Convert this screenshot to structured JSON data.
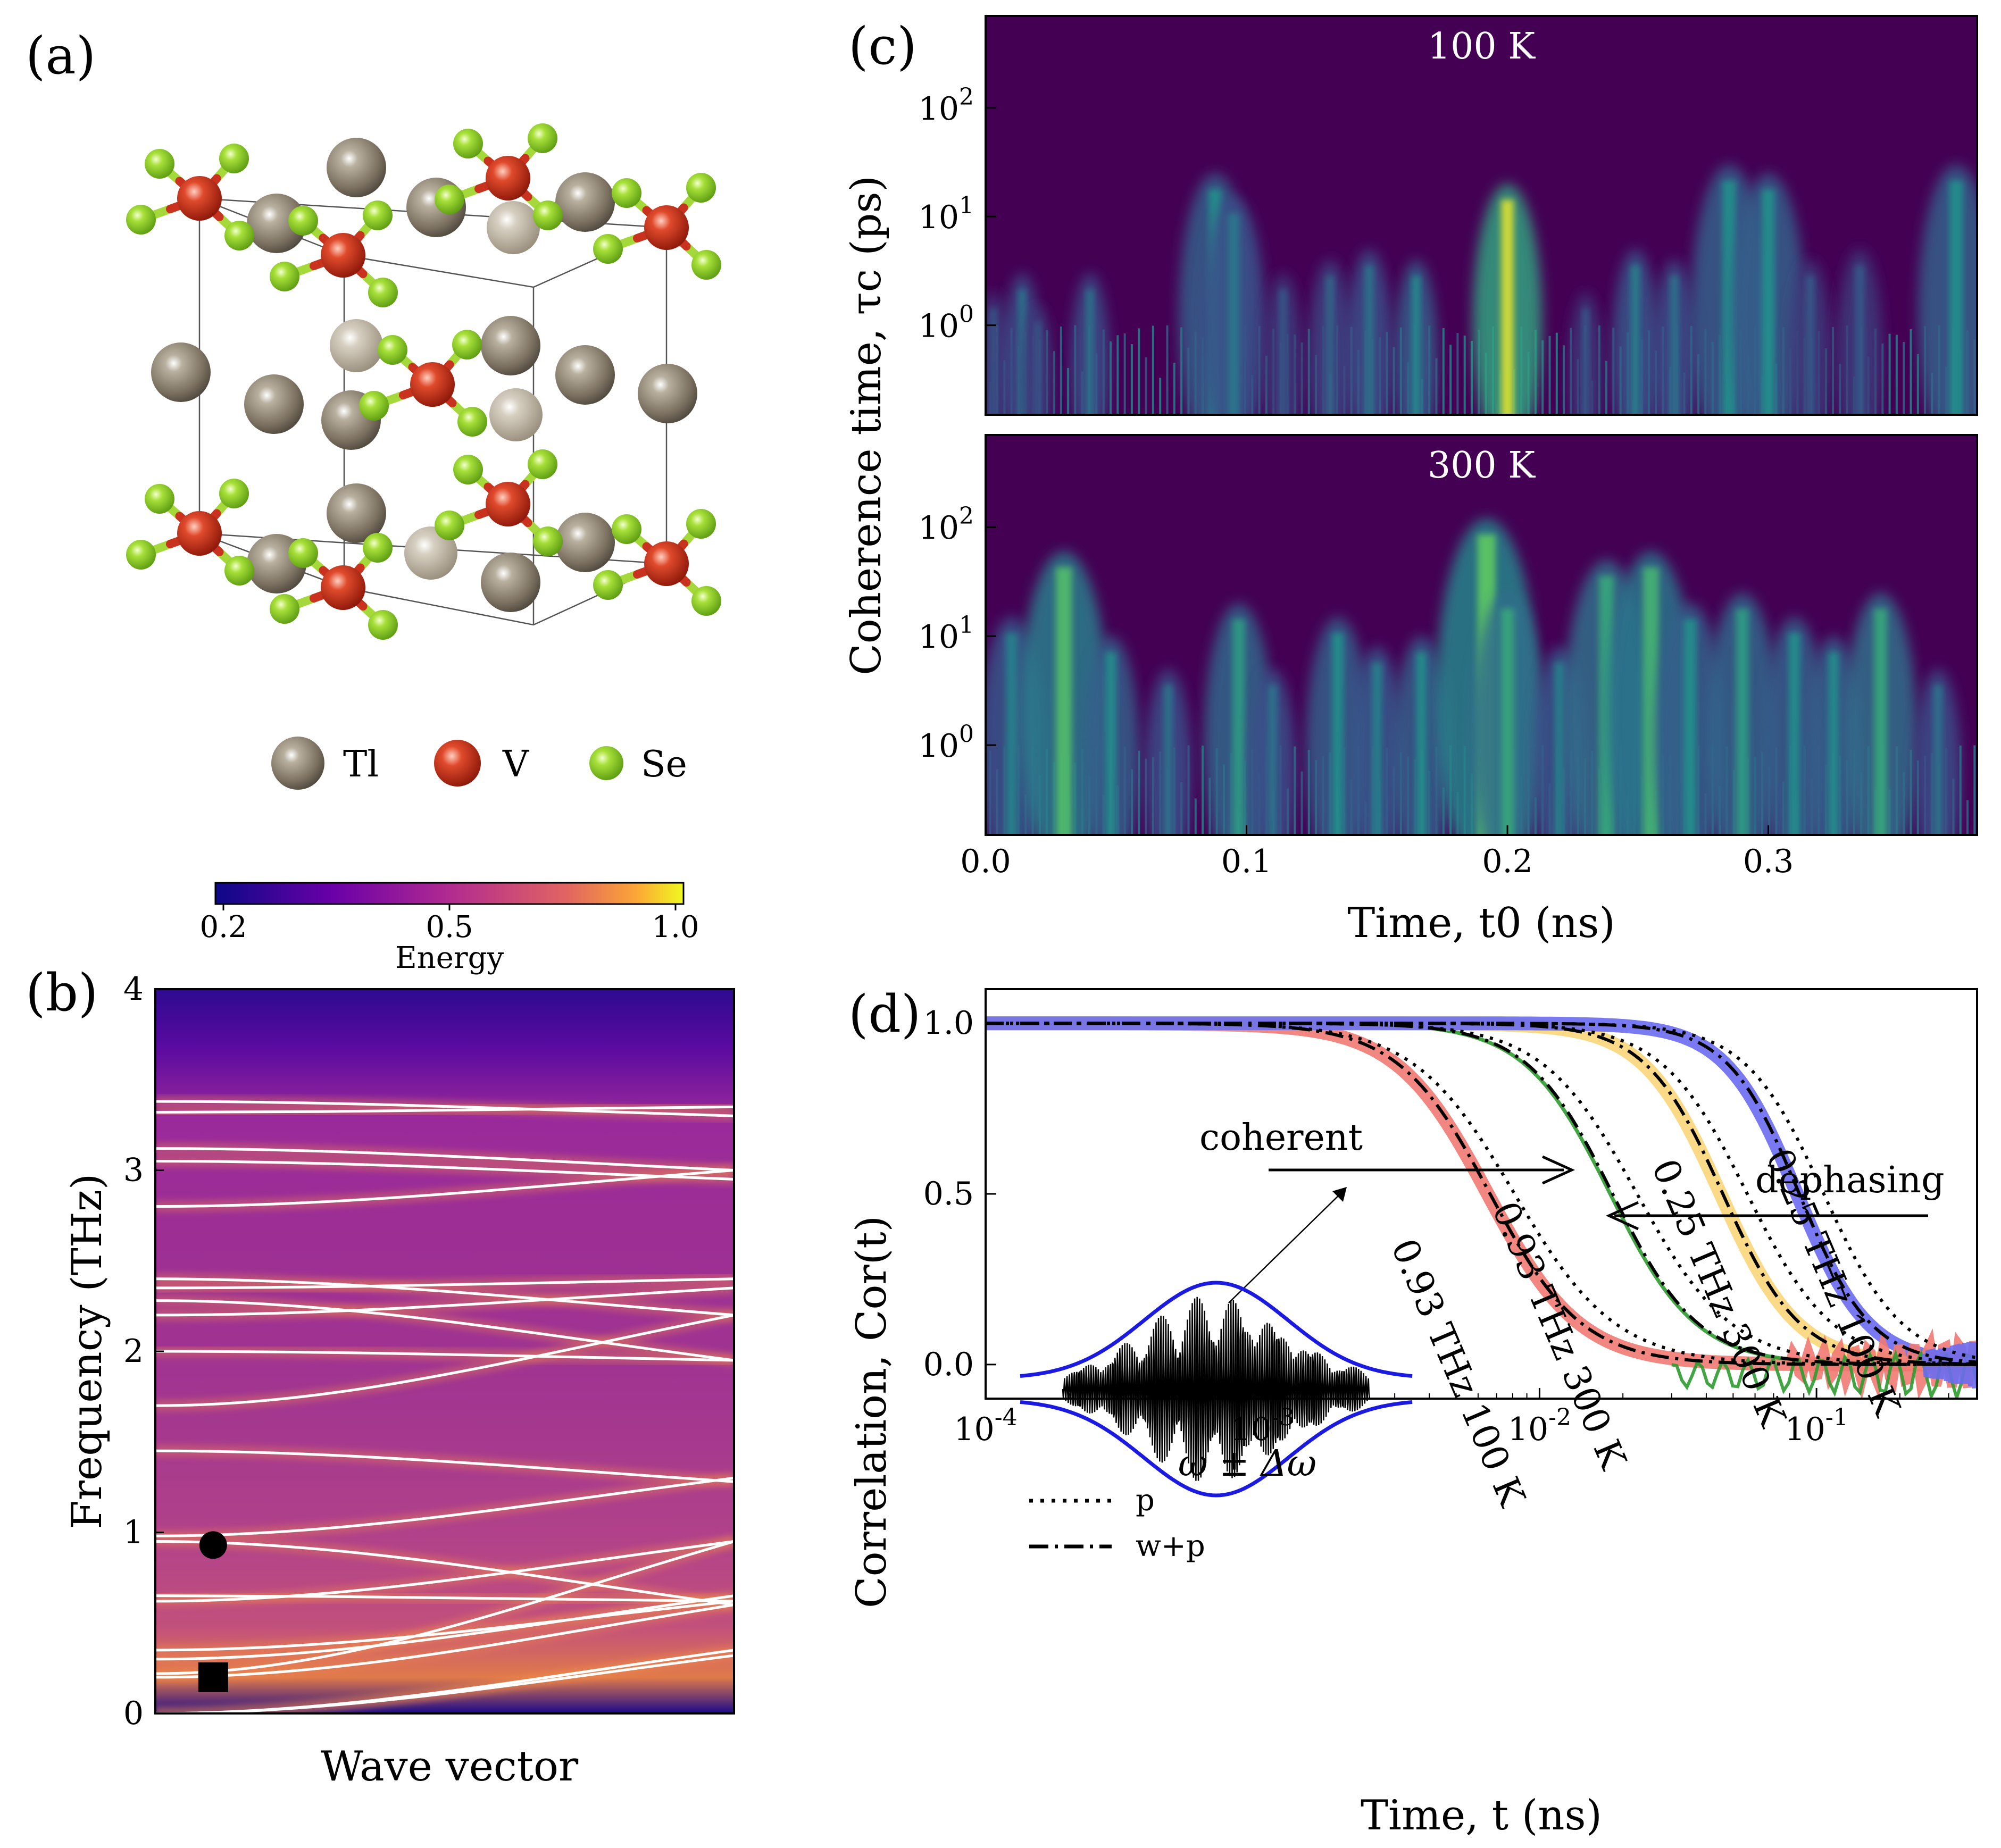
{
  "panels": {
    "a": {
      "label": "(a)"
    },
    "b": {
      "label": "(b)"
    },
    "c": {
      "label": "(c)"
    },
    "d": {
      "label": "(d)"
    }
  },
  "structure": {
    "legend": [
      {
        "name": "Tl",
        "color": "#8a8070"
      },
      {
        "name": "V",
        "color": "#d03a20"
      },
      {
        "name": "Se",
        "color": "#9fd834"
      }
    ]
  },
  "colorbar": {
    "label": "Energy",
    "ticks": [
      "0.2",
      "0.5",
      "1.0"
    ],
    "colors": [
      "#0d0887",
      "#7e03a8",
      "#cc4778",
      "#f89540",
      "#f0f921"
    ]
  },
  "chart_data": [
    {
      "id": "b",
      "type": "heatmap",
      "title": "",
      "xlabel": "Wave vector",
      "ylabel": "Frequency (THz)",
      "ylim": [
        0,
        4
      ],
      "yticks": [
        "0",
        "1",
        "2",
        "3",
        "4"
      ],
      "dispersion_start_thz": [
        0,
        0,
        0.2,
        0.22,
        0.3,
        0.35,
        0.62,
        0.65,
        0.95,
        0.98,
        1.45,
        1.7,
        2.0,
        2.2,
        2.28,
        2.35,
        2.4,
        2.8,
        3.05,
        3.12,
        3.32,
        3.38
      ],
      "dispersion_end_thz": [
        0.32,
        0.35,
        0.6,
        0.95,
        0.65,
        0.62,
        0.95,
        0.62,
        0.6,
        1.3,
        1.28,
        2.2,
        1.95,
        2.35,
        1.95,
        2.4,
        2.2,
        3.0,
        2.95,
        3.0,
        3.35,
        3.3
      ],
      "markers": [
        {
          "shape": "circle",
          "x_frac": 0.1,
          "frequency": 0.93
        },
        {
          "shape": "square",
          "x_frac": 0.1,
          "frequency": 0.2
        }
      ]
    },
    {
      "id": "c",
      "type": "heatmap",
      "xlabel": "Time, t0 (ns)",
      "ylabel": "Coherence time, τc (ps)",
      "xlim": [
        0,
        0.38
      ],
      "xticks": [
        "0.0",
        "0.1",
        "0.2",
        "0.3"
      ],
      "yticks": [
        "10^0",
        "10^1",
        "10^2"
      ],
      "yscale": "log",
      "ylim": [
        0.15,
        700
      ],
      "panels": [
        {
          "title": "100 K",
          "bursts": [
            {
              "t": 0.003,
              "tau": 2,
              "s": 0.3
            },
            {
              "t": 0.014,
              "tau": 3,
              "s": 0.4
            },
            {
              "t": 0.02,
              "tau": 1.5,
              "s": 0.3
            },
            {
              "t": 0.04,
              "tau": 3,
              "s": 0.4
            },
            {
              "t": 0.088,
              "tau": 25,
              "s": 0.5
            },
            {
              "t": 0.095,
              "tau": 15,
              "s": 0.4
            },
            {
              "t": 0.114,
              "tau": 3,
              "s": 0.3
            },
            {
              "t": 0.132,
              "tau": 4,
              "s": 0.35
            },
            {
              "t": 0.147,
              "tau": 5,
              "s": 0.4
            },
            {
              "t": 0.165,
              "tau": 4,
              "s": 0.5
            },
            {
              "t": 0.2,
              "tau": 20,
              "s": 0.95
            },
            {
              "t": 0.23,
              "tau": 2,
              "s": 0.3
            },
            {
              "t": 0.249,
              "tau": 5,
              "s": 0.45
            },
            {
              "t": 0.264,
              "tau": 4,
              "s": 0.4
            },
            {
              "t": 0.285,
              "tau": 30,
              "s": 0.5
            },
            {
              "t": 0.3,
              "tau": 25,
              "s": 0.5
            },
            {
              "t": 0.316,
              "tau": 4,
              "s": 0.3
            },
            {
              "t": 0.335,
              "tau": 5,
              "s": 0.3
            },
            {
              "t": 0.372,
              "tau": 30,
              "s": 0.5
            }
          ]
        },
        {
          "title": "300 K",
          "bursts": [
            {
              "t": 0.01,
              "tau": 15,
              "s": 0.45
            },
            {
              "t": 0.03,
              "tau": 60,
              "s": 0.7
            },
            {
              "t": 0.048,
              "tau": 10,
              "s": 0.5
            },
            {
              "t": 0.07,
              "tau": 5,
              "s": 0.4
            },
            {
              "t": 0.097,
              "tau": 20,
              "s": 0.55
            },
            {
              "t": 0.11,
              "tau": 5,
              "s": 0.4
            },
            {
              "t": 0.135,
              "tau": 15,
              "s": 0.5
            },
            {
              "t": 0.15,
              "tau": 8,
              "s": 0.45
            },
            {
              "t": 0.167,
              "tau": 10,
              "s": 0.5
            },
            {
              "t": 0.192,
              "tau": 120,
              "s": 0.75
            },
            {
              "t": 0.2,
              "tau": 25,
              "s": 0.6
            },
            {
              "t": 0.22,
              "tau": 8,
              "s": 0.45
            },
            {
              "t": 0.238,
              "tau": 50,
              "s": 0.6
            },
            {
              "t": 0.255,
              "tau": 60,
              "s": 0.65
            },
            {
              "t": 0.27,
              "tau": 20,
              "s": 0.5
            },
            {
              "t": 0.29,
              "tau": 25,
              "s": 0.55
            },
            {
              "t": 0.31,
              "tau": 15,
              "s": 0.5
            },
            {
              "t": 0.325,
              "tau": 10,
              "s": 0.5
            },
            {
              "t": 0.343,
              "tau": 25,
              "s": 0.6
            },
            {
              "t": 0.365,
              "tau": 5,
              "s": 0.4
            }
          ]
        }
      ]
    },
    {
      "id": "d",
      "type": "line",
      "xlabel": "Time, t (ns)",
      "ylabel": "Correlation, Cor(t)",
      "xscale": "log",
      "xlim": [
        0.0001,
        0.38
      ],
      "ylim": [
        -0.1,
        1.1
      ],
      "xticks": [
        "10^-4",
        "10^-3",
        "10^-2",
        "10^-1"
      ],
      "yticks": [
        "0.0",
        "0.5",
        "1.0"
      ],
      "series": [
        {
          "name": "0.93 THz 100 K",
          "color": "#f07a72",
          "halfpoint_ns": 0.0065,
          "width": 0.45
        },
        {
          "name": "0.93 THz 300 K",
          "color": "#2e9a2e",
          "halfpoint_ns": 0.018,
          "width": 0.42
        },
        {
          "name": "0.25 THz 300 K",
          "color": "#fbd67a",
          "halfpoint_ns": 0.045,
          "width": 0.38
        },
        {
          "name": "0.25 THz 100 K",
          "color": "#6a6cf0",
          "halfpoint_ns": 0.085,
          "width": 0.35
        }
      ],
      "legend": [
        {
          "name": "p",
          "style": "dotted"
        },
        {
          "name": "w+p",
          "style": "dashdot"
        }
      ],
      "annotations": {
        "coherent": "coherent",
        "dephasing": "dephasing",
        "inset_label": "ω ± Δω"
      }
    }
  ]
}
